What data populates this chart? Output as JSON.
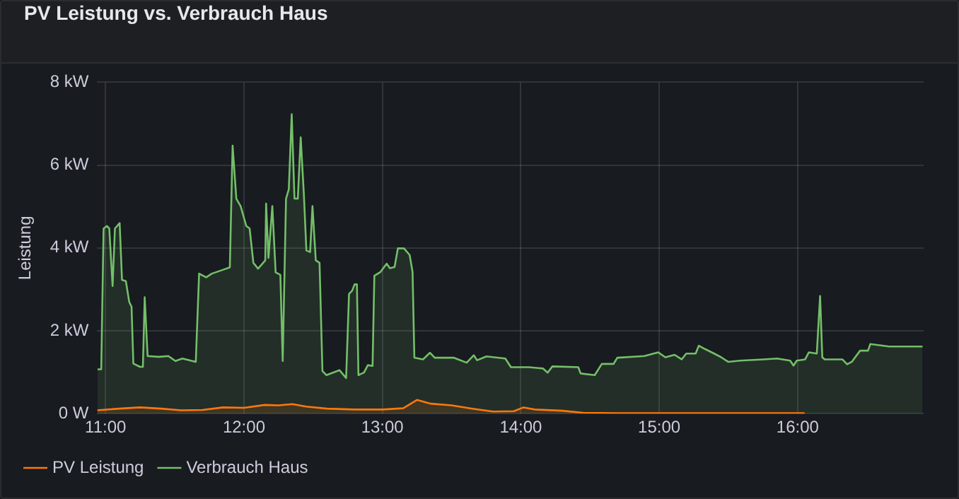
{
  "chart_data": {
    "type": "area",
    "title": "PV Leistung vs. Verbrauch Haus",
    "ylabel": "Leistung",
    "xlim": [
      10.94,
      16.91
    ],
    "xticks": [
      {
        "value": 11,
        "label": "11:00"
      },
      {
        "value": 12,
        "label": "12:00"
      },
      {
        "value": 13,
        "label": "13:00"
      },
      {
        "value": 14,
        "label": "14:00"
      },
      {
        "value": 15,
        "label": "15:00"
      },
      {
        "value": 16,
        "label": "16:00"
      }
    ],
    "ylim": [
      0,
      8
    ],
    "yticks": [
      {
        "value": 0,
        "label": "0 W"
      },
      {
        "value": 2,
        "label": "2 kW"
      },
      {
        "value": 4,
        "label": "4 kW"
      },
      {
        "value": 6,
        "label": "6 kW"
      },
      {
        "value": 8,
        "label": "8 kW"
      }
    ],
    "grid": true,
    "legend": "bottom left",
    "marker": "none",
    "line_style": "solid",
    "series": [
      {
        "name": "PV Leistung",
        "color": "#ff780a",
        "x": [
          10.94,
          11.1,
          11.25,
          11.4,
          11.55,
          11.7,
          11.85,
          12.0,
          12.15,
          12.25,
          12.35,
          12.45,
          12.6,
          12.8,
          13.0,
          13.15,
          13.25,
          13.35,
          13.5,
          13.65,
          13.8,
          13.95,
          14.02,
          14.1,
          14.3,
          14.45,
          14.7,
          15.0,
          15.5,
          16.05
        ],
        "values": [
          0.08,
          0.12,
          0.15,
          0.12,
          0.08,
          0.09,
          0.15,
          0.14,
          0.21,
          0.2,
          0.23,
          0.17,
          0.12,
          0.1,
          0.1,
          0.13,
          0.33,
          0.24,
          0.2,
          0.12,
          0.05,
          0.06,
          0.15,
          0.1,
          0.07,
          0.02,
          0.01,
          0.01,
          0.01,
          0.01
        ]
      },
      {
        "name": "Verbrauch Haus",
        "color": "#73bf69",
        "x": [
          10.942,
          10.969,
          10.986,
          11.01,
          11.027,
          11.051,
          11.068,
          11.102,
          11.119,
          11.147,
          11.171,
          11.188,
          11.201,
          11.249,
          11.27,
          11.283,
          11.304,
          11.386,
          11.454,
          11.505,
          11.556,
          11.652,
          11.676,
          11.727,
          11.768,
          11.846,
          11.898,
          11.918,
          11.945,
          11.976,
          12.017,
          12.041,
          12.068,
          12.102,
          12.154,
          12.16,
          12.177,
          12.205,
          12.229,
          12.263,
          12.28,
          12.304,
          12.324,
          12.345,
          12.365,
          12.389,
          12.41,
          12.433,
          12.451,
          12.478,
          12.495,
          12.519,
          12.546,
          12.567,
          12.595,
          12.69,
          12.738,
          12.759,
          12.782,
          12.799,
          12.816,
          12.827,
          12.867,
          12.895,
          12.929,
          12.942,
          12.986,
          13.031,
          13.054,
          13.088,
          13.112,
          13.156,
          13.197,
          13.218,
          13.231,
          13.293,
          13.344,
          13.378,
          13.514,
          13.609,
          13.66,
          13.684,
          13.752,
          13.888,
          13.929,
          14.058,
          14.16,
          14.194,
          14.228,
          14.415,
          14.432,
          14.534,
          14.585,
          14.67,
          14.697,
          14.892,
          14.993,
          15.044,
          15.111,
          15.162,
          15.195,
          15.263,
          15.286,
          15.33,
          15.397,
          15.448,
          15.498,
          15.582,
          15.751,
          15.852,
          15.946,
          15.97,
          15.993,
          16.054,
          16.081,
          16.138,
          16.162,
          16.178,
          16.195,
          16.323,
          16.357,
          16.391,
          16.451,
          16.508,
          16.525,
          16.593,
          16.66,
          16.795,
          16.902
        ],
        "values": [
          1.07,
          1.07,
          4.47,
          4.53,
          4.47,
          3.08,
          4.47,
          4.6,
          3.23,
          3.2,
          2.7,
          2.58,
          1.21,
          1.13,
          1.13,
          2.81,
          1.39,
          1.37,
          1.39,
          1.27,
          1.33,
          1.25,
          3.38,
          3.29,
          3.38,
          3.47,
          3.53,
          6.47,
          5.19,
          5.01,
          4.53,
          4.47,
          3.64,
          3.5,
          3.7,
          5.07,
          3.76,
          5.01,
          3.41,
          3.35,
          1.27,
          5.19,
          5.42,
          7.23,
          5.19,
          5.19,
          6.67,
          5.28,
          3.94,
          3.9,
          5.01,
          3.7,
          3.64,
          1.03,
          0.93,
          1.05,
          0.86,
          2.89,
          2.97,
          3.12,
          3.12,
          0.93,
          0.99,
          1.17,
          1.15,
          3.33,
          3.42,
          3.62,
          3.51,
          3.54,
          3.99,
          3.99,
          3.83,
          3.42,
          1.35,
          1.31,
          1.47,
          1.35,
          1.35,
          1.23,
          1.41,
          1.29,
          1.38,
          1.33,
          1.12,
          1.12,
          1.09,
          0.99,
          1.14,
          1.12,
          0.97,
          0.93,
          1.2,
          1.2,
          1.35,
          1.39,
          1.48,
          1.36,
          1.42,
          1.31,
          1.45,
          1.45,
          1.64,
          1.56,
          1.45,
          1.36,
          1.25,
          1.28,
          1.31,
          1.33,
          1.28,
          1.16,
          1.28,
          1.31,
          1.48,
          1.45,
          2.84,
          1.36,
          1.31,
          1.31,
          1.19,
          1.25,
          1.52,
          1.52,
          1.68,
          1.65,
          1.62,
          1.62,
          1.62
        ]
      }
    ]
  }
}
